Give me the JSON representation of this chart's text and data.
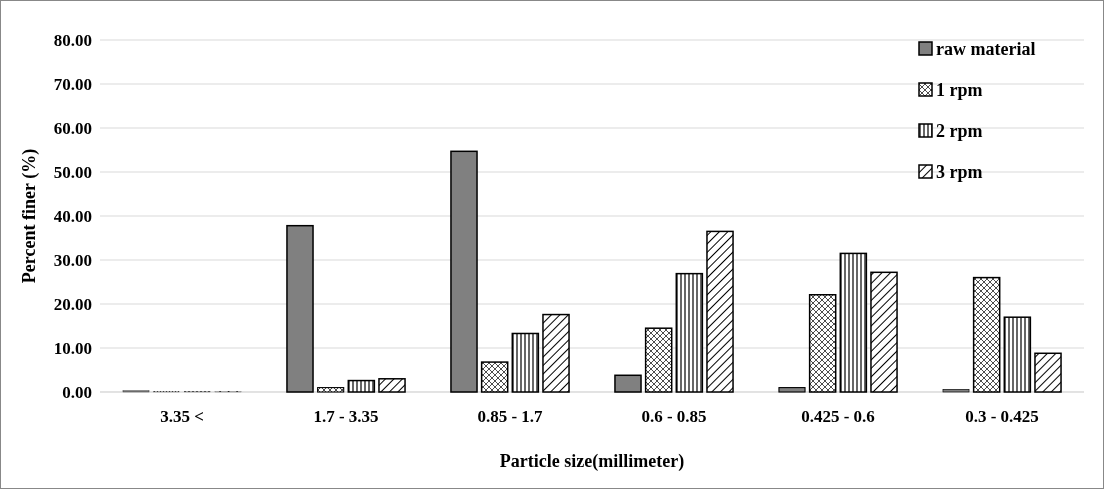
{
  "chart_data": {
    "type": "bar",
    "xlabel": "Particle size(millimeter)",
    "ylabel": "Percent finer (%)",
    "categories": [
      "3.35 <",
      "1.7 - 3.35",
      "0.85 - 1.7",
      "0.6 - 0.85",
      "0.425 - 0.6",
      "0.3 - 0.425"
    ],
    "series": [
      {
        "name": "raw material",
        "color": "#808080",
        "values": [
          0.3,
          37.8,
          54.7,
          3.8,
          1.0,
          0.6
        ]
      },
      {
        "name": "1 rpm",
        "color": "#000000",
        "values": [
          0.2,
          1.0,
          6.8,
          14.5,
          22.1,
          26.0
        ]
      },
      {
        "name": "2 rpm",
        "color": "#000000",
        "values": [
          0.2,
          2.6,
          13.3,
          26.9,
          31.5,
          17.0
        ]
      },
      {
        "name": "3 rpm",
        "color": "#000000",
        "values": [
          0.2,
          3.0,
          17.6,
          36.5,
          27.2,
          8.8
        ]
      }
    ],
    "ylim": [
      0,
      80
    ],
    "yticks": [
      {
        "value": 0,
        "label": "0.00"
      },
      {
        "value": 10,
        "label": "10.00"
      },
      {
        "value": 20,
        "label": "20.00"
      },
      {
        "value": 30,
        "label": "30.00"
      },
      {
        "value": 40,
        "label": "40.00"
      },
      {
        "value": 50,
        "label": "50.00"
      },
      {
        "value": 60,
        "label": "60.00"
      },
      {
        "value": 70,
        "label": "70.00"
      },
      {
        "value": 80,
        "label": "80.00"
      }
    ],
    "grid": "y",
    "legend": "top right"
  }
}
